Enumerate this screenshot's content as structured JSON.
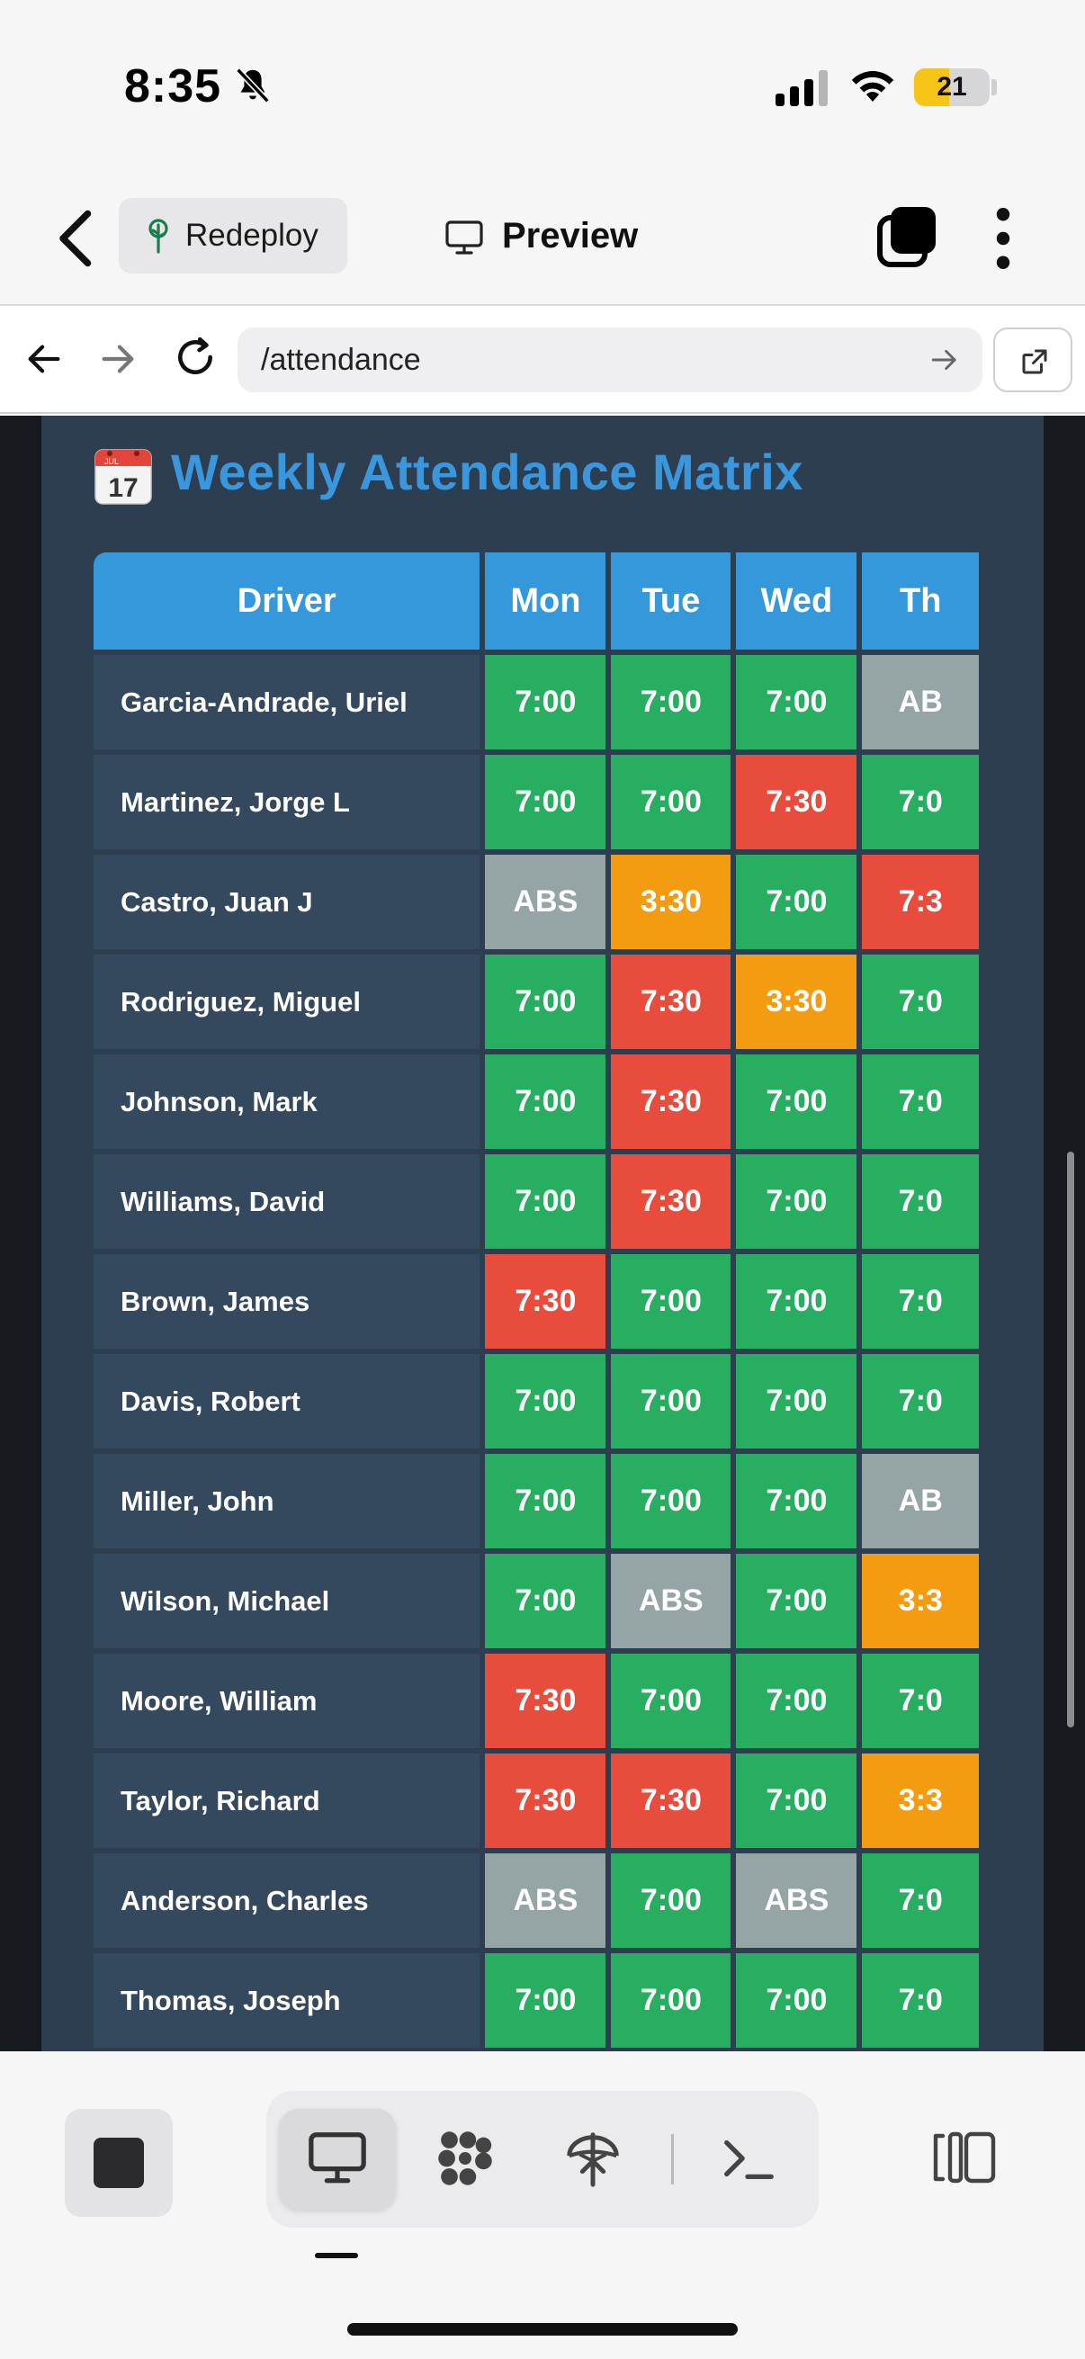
{
  "status_bar": {
    "time": "8:35",
    "battery_level": "21",
    "battery_fraction": 0.21
  },
  "toolbar": {
    "redeploy_label": "Redeploy",
    "preview_label": "Preview"
  },
  "browser": {
    "url": "/attendance"
  },
  "page": {
    "title": "Weekly Attendance Matrix"
  },
  "table": {
    "driver_header": "Driver",
    "days": [
      "Mon",
      "Tue",
      "Wed",
      "Th"
    ],
    "rows": [
      {
        "driver": "Garcia-Andrade, Uriel",
        "cells": [
          {
            "text": "7:00",
            "status": "ontime"
          },
          {
            "text": "7:00",
            "status": "ontime"
          },
          {
            "text": "7:00",
            "status": "ontime"
          },
          {
            "text": "AB",
            "status": "absent"
          }
        ]
      },
      {
        "driver": "Martinez, Jorge L",
        "cells": [
          {
            "text": "7:00",
            "status": "ontime"
          },
          {
            "text": "7:00",
            "status": "ontime"
          },
          {
            "text": "7:30",
            "status": "late"
          },
          {
            "text": "7:0",
            "status": "ontime"
          }
        ]
      },
      {
        "driver": "Castro, Juan J",
        "cells": [
          {
            "text": "ABS",
            "status": "absent"
          },
          {
            "text": "3:30",
            "status": "early"
          },
          {
            "text": "7:00",
            "status": "ontime"
          },
          {
            "text": "7:3",
            "status": "late"
          }
        ]
      },
      {
        "driver": "Rodriguez, Miguel",
        "cells": [
          {
            "text": "7:00",
            "status": "ontime"
          },
          {
            "text": "7:30",
            "status": "late"
          },
          {
            "text": "3:30",
            "status": "early"
          },
          {
            "text": "7:0",
            "status": "ontime"
          }
        ]
      },
      {
        "driver": "Johnson, Mark",
        "cells": [
          {
            "text": "7:00",
            "status": "ontime"
          },
          {
            "text": "7:30",
            "status": "late"
          },
          {
            "text": "7:00",
            "status": "ontime"
          },
          {
            "text": "7:0",
            "status": "ontime"
          }
        ]
      },
      {
        "driver": "Williams, David",
        "cells": [
          {
            "text": "7:00",
            "status": "ontime"
          },
          {
            "text": "7:30",
            "status": "late"
          },
          {
            "text": "7:00",
            "status": "ontime"
          },
          {
            "text": "7:0",
            "status": "ontime"
          }
        ]
      },
      {
        "driver": "Brown, James",
        "cells": [
          {
            "text": "7:30",
            "status": "late"
          },
          {
            "text": "7:00",
            "status": "ontime"
          },
          {
            "text": "7:00",
            "status": "ontime"
          },
          {
            "text": "7:0",
            "status": "ontime"
          }
        ]
      },
      {
        "driver": "Davis, Robert",
        "cells": [
          {
            "text": "7:00",
            "status": "ontime"
          },
          {
            "text": "7:00",
            "status": "ontime"
          },
          {
            "text": "7:00",
            "status": "ontime"
          },
          {
            "text": "7:0",
            "status": "ontime"
          }
        ]
      },
      {
        "driver": "Miller, John",
        "cells": [
          {
            "text": "7:00",
            "status": "ontime"
          },
          {
            "text": "7:00",
            "status": "ontime"
          },
          {
            "text": "7:00",
            "status": "ontime"
          },
          {
            "text": "AB",
            "status": "absent"
          }
        ]
      },
      {
        "driver": "Wilson, Michael",
        "cells": [
          {
            "text": "7:00",
            "status": "ontime"
          },
          {
            "text": "ABS",
            "status": "absent"
          },
          {
            "text": "7:00",
            "status": "ontime"
          },
          {
            "text": "3:3",
            "status": "early"
          }
        ]
      },
      {
        "driver": "Moore, William",
        "cells": [
          {
            "text": "7:30",
            "status": "late"
          },
          {
            "text": "7:00",
            "status": "ontime"
          },
          {
            "text": "7:00",
            "status": "ontime"
          },
          {
            "text": "7:0",
            "status": "ontime"
          }
        ]
      },
      {
        "driver": "Taylor, Richard",
        "cells": [
          {
            "text": "7:30",
            "status": "late"
          },
          {
            "text": "7:30",
            "status": "late"
          },
          {
            "text": "7:00",
            "status": "ontime"
          },
          {
            "text": "3:3",
            "status": "early"
          }
        ]
      },
      {
        "driver": "Anderson, Charles",
        "cells": [
          {
            "text": "ABS",
            "status": "absent"
          },
          {
            "text": "7:00",
            "status": "ontime"
          },
          {
            "text": "ABS",
            "status": "absent"
          },
          {
            "text": "7:0",
            "status": "ontime"
          }
        ]
      },
      {
        "driver": "Thomas, Joseph",
        "cells": [
          {
            "text": "7:00",
            "status": "ontime"
          },
          {
            "text": "7:00",
            "status": "ontime"
          },
          {
            "text": "7:00",
            "status": "ontime"
          },
          {
            "text": "7:0",
            "status": "ontime"
          }
        ]
      }
    ]
  },
  "colors": {
    "ontime": "#27ae60",
    "late": "#e74c3c",
    "early": "#f39c12",
    "absent": "#95a5a6",
    "header": "#3498db",
    "title": "#3a97dd",
    "panel": "#2c3e50",
    "driver_cell": "#34495e"
  },
  "icons": {
    "status": [
      "bell-slash-icon",
      "signal-icon",
      "wifi-icon",
      "battery-icon"
    ],
    "toolbar": [
      "chevron-left-icon",
      "tree-icon",
      "monitor-icon",
      "tabs-icon",
      "more-vertical-icon"
    ],
    "browser": [
      "arrow-left-icon",
      "arrow-right-icon",
      "reload-icon",
      "arrow-right-small-icon",
      "external-link-icon"
    ],
    "page": [
      "calendar-icon"
    ],
    "bottom": [
      "stop-icon",
      "monitor-icon",
      "grid-icon",
      "deploy-icon",
      "terminal-icon",
      "split-view-icon"
    ]
  },
  "calendar_icon": {
    "month": "JUL",
    "day": "17"
  }
}
